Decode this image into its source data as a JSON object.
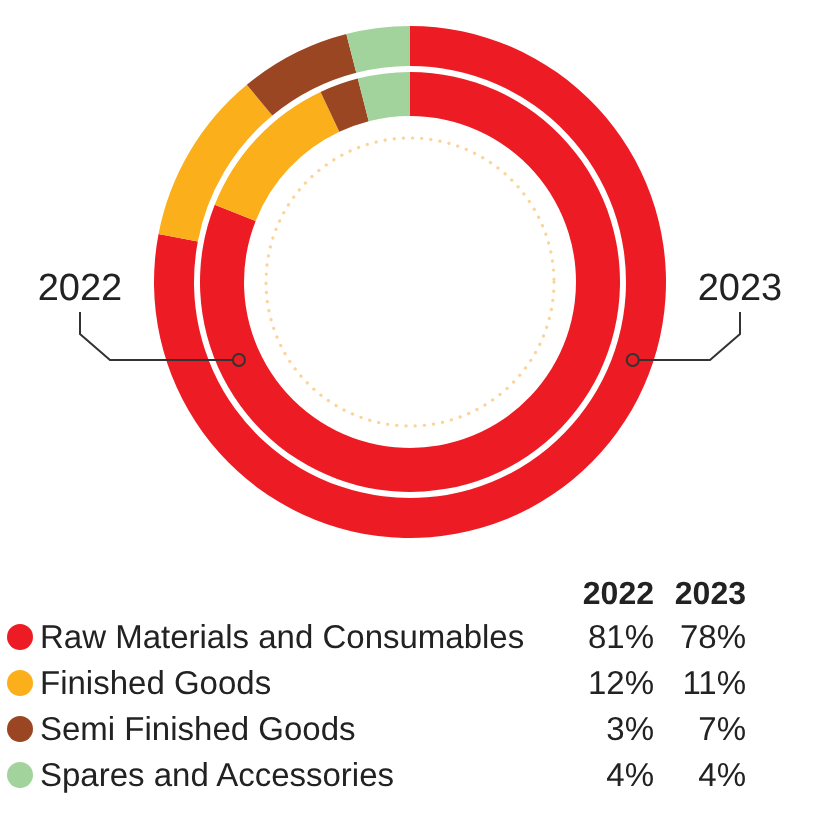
{
  "chart_data": {
    "type": "donut",
    "categories": [
      "Raw Materials and Consumables",
      "Finished Goods",
      "Semi Finished Goods",
      "Spares and Accessories"
    ],
    "colors": [
      "#ed1c24",
      "#faaf1b",
      "#9a4622",
      "#a3d39c"
    ],
    "series": [
      {
        "name": "2022",
        "values": [
          81,
          12,
          3,
          4
        ],
        "value_labels": [
          "81%",
          "12%",
          "3%",
          "4%"
        ]
      },
      {
        "name": "2023",
        "values": [
          78,
          11,
          7,
          4
        ],
        "value_labels": [
          "78%",
          "11%",
          "7%",
          "4%"
        ]
      }
    ],
    "legend": "bottom"
  }
}
